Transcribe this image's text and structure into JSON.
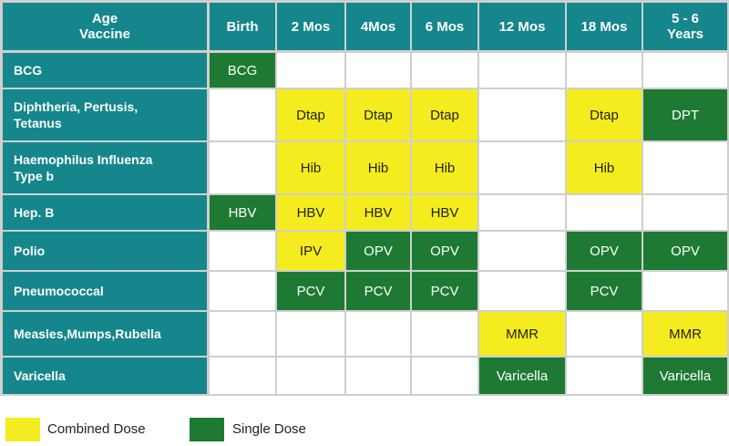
{
  "header": {
    "corner_line1": "Age",
    "corner_line2": "Vaccine",
    "ages": [
      "Birth",
      "2 Mos",
      "4Mos",
      "6 Mos",
      "12 Mos",
      "18 Mos",
      "5 - 6 Years"
    ]
  },
  "rows": [
    {
      "vaccine": "BCG",
      "cells": [
        {
          "text": "BCG",
          "type": "single"
        },
        {
          "text": "",
          "type": "empty"
        },
        {
          "text": "",
          "type": "empty"
        },
        {
          "text": "",
          "type": "empty"
        },
        {
          "text": "",
          "type": "empty"
        },
        {
          "text": "",
          "type": "empty"
        },
        {
          "text": "",
          "type": "empty"
        }
      ]
    },
    {
      "vaccine": "Diphtheria, Pertusis, Tetanus",
      "cells": [
        {
          "text": "",
          "type": "empty"
        },
        {
          "text": "Dtap",
          "type": "combined"
        },
        {
          "text": "Dtap",
          "type": "combined"
        },
        {
          "text": "Dtap",
          "type": "combined"
        },
        {
          "text": "",
          "type": "empty"
        },
        {
          "text": "Dtap",
          "type": "combined"
        },
        {
          "text": "DPT",
          "type": "single"
        }
      ]
    },
    {
      "vaccine": "Haemophilus Influenza Type b",
      "cells": [
        {
          "text": "",
          "type": "empty"
        },
        {
          "text": "Hib",
          "type": "combined"
        },
        {
          "text": "Hib",
          "type": "combined"
        },
        {
          "text": "Hib",
          "type": "combined"
        },
        {
          "text": "",
          "type": "empty"
        },
        {
          "text": "Hib",
          "type": "combined"
        },
        {
          "text": "",
          "type": "empty"
        }
      ]
    },
    {
      "vaccine": "Hep. B",
      "cells": [
        {
          "text": "HBV",
          "type": "single"
        },
        {
          "text": "HBV",
          "type": "combined"
        },
        {
          "text": "HBV",
          "type": "combined"
        },
        {
          "text": "HBV",
          "type": "combined"
        },
        {
          "text": "",
          "type": "empty"
        },
        {
          "text": "",
          "type": "empty"
        },
        {
          "text": "",
          "type": "empty"
        }
      ]
    },
    {
      "vaccine": "Polio",
      "cells": [
        {
          "text": "",
          "type": "empty"
        },
        {
          "text": "IPV",
          "type": "combined"
        },
        {
          "text": "OPV",
          "type": "single"
        },
        {
          "text": "OPV",
          "type": "single"
        },
        {
          "text": "",
          "type": "empty"
        },
        {
          "text": "OPV",
          "type": "single"
        },
        {
          "text": "OPV",
          "type": "single"
        }
      ]
    },
    {
      "vaccine": "Pneumococcal",
      "cells": [
        {
          "text": "",
          "type": "empty"
        },
        {
          "text": "PCV",
          "type": "single"
        },
        {
          "text": "PCV",
          "type": "single"
        },
        {
          "text": "PCV",
          "type": "single"
        },
        {
          "text": "",
          "type": "empty"
        },
        {
          "text": "PCV",
          "type": "single"
        },
        {
          "text": "",
          "type": "empty"
        }
      ]
    },
    {
      "vaccine": "Measles,Mumps,Rubella",
      "cells": [
        {
          "text": "",
          "type": "empty"
        },
        {
          "text": "",
          "type": "empty"
        },
        {
          "text": "",
          "type": "empty"
        },
        {
          "text": "",
          "type": "empty"
        },
        {
          "text": "MMR",
          "type": "combined"
        },
        {
          "text": "",
          "type": "empty"
        },
        {
          "text": "MMR",
          "type": "combined"
        }
      ]
    },
    {
      "vaccine": "Varicella",
      "cells": [
        {
          "text": "",
          "type": "empty"
        },
        {
          "text": "",
          "type": "empty"
        },
        {
          "text": "",
          "type": "empty"
        },
        {
          "text": "",
          "type": "empty"
        },
        {
          "text": "Varicella",
          "type": "single"
        },
        {
          "text": "",
          "type": "empty"
        },
        {
          "text": "Varicella",
          "type": "single"
        }
      ]
    }
  ],
  "legend": {
    "combined_label": "Combined Dose",
    "single_label": "Single Dose",
    "combined_color": "#f4ec1e",
    "single_color": "#1e7a33"
  },
  "colors": {
    "header_teal": "#14868c",
    "combined": "#f4ec1e",
    "single": "#1e7a33",
    "empty": "#ffffff"
  }
}
